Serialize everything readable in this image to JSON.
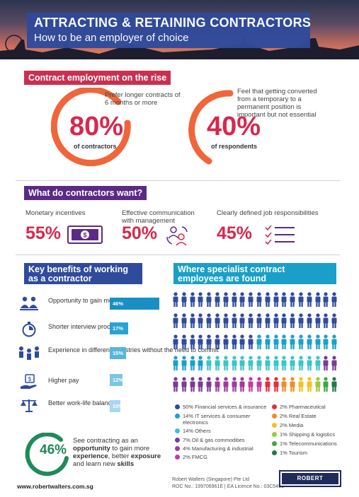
{
  "header": {
    "title": "ATTRACTING & RETAINING CONTRACTORS",
    "subtitle": "How to be an employer of choice"
  },
  "section1": {
    "title": "Contract employment on the rise",
    "stat1": {
      "desc": "Prefer longer contracts of 6 months or more",
      "value": "80%",
      "label": "of contractors"
    },
    "stat2": {
      "desc": "Feel that getting converted from a temporary to a permanent position is important but not essential",
      "value": "40%",
      "label": "of respondents"
    }
  },
  "section2": {
    "title": "What do contractors want?",
    "items": [
      {
        "label": "Monetary incentives",
        "value": "55%",
        "icon": "money-icon"
      },
      {
        "label": "Effective communication with management",
        "value": "50%",
        "icon": "communication-icon"
      },
      {
        "label": "Clearly defined job responsibilities",
        "value": "45%",
        "icon": "checklist-icon"
      }
    ]
  },
  "section3": {
    "title": "Key benefits of working as a contractor",
    "items": [
      {
        "label": "Opportunity to gain more exposure",
        "value": "46%",
        "pct": 46,
        "icon": "people-icon"
      },
      {
        "label": "Shorter interview process",
        "value": "17%",
        "pct": 17,
        "icon": "stopwatch-icon"
      },
      {
        "label": "Experience in different industries without the need to commit",
        "value": "15%",
        "pct": 15,
        "icon": "industries-icon"
      },
      {
        "label": "Higher pay",
        "value": "12%",
        "pct": 12,
        "icon": "pay-icon"
      },
      {
        "label": "Better work-life balance",
        "value": "10%",
        "pct": 10,
        "icon": "balance-icon"
      }
    ],
    "highlight": {
      "value": "46%",
      "text_pre": "See contracting as an ",
      "text_b1": "opportunity",
      "text_mid1": " to gain more ",
      "text_b2": "experience",
      "text_mid2": ", better ",
      "text_b3": "exposure",
      "text_mid3": " and learn new ",
      "text_b4": "skills"
    }
  },
  "section4": {
    "title": "Where specialist contract employees are found",
    "legend_left": [
      {
        "label": "50%  Financial services & insurance",
        "color": "#2f4b9c"
      },
      {
        "label": "14%  IT services & consumer electronics",
        "color": "#1aa0c8"
      },
      {
        "label": "14%  Others",
        "color": "#3cc4c8"
      },
      {
        "label": "7%  Oil & gas commodities",
        "color": "#7b3a96"
      },
      {
        "label": "4%  Manufacturing & industrial",
        "color": "#a03aa0"
      },
      {
        "label": "2%  FMCG",
        "color": "#c23aa6"
      }
    ],
    "legend_right": [
      {
        "label": "2%  Pharmaceutical",
        "color": "#e0303c"
      },
      {
        "label": "2%  Real Estate",
        "color": "#f08a2a"
      },
      {
        "label": "2%  Media",
        "color": "#f2c21e"
      },
      {
        "label": "1%  Shipping & logistics",
        "color": "#9cc83a"
      },
      {
        "label": "1%  Telecommunications",
        "color": "#3aa84a"
      },
      {
        "label": "1%  Tourism",
        "color": "#1f7a4a"
      }
    ]
  },
  "footer": {
    "url": "www.robertwalters.com.sg",
    "company": "Robert Walters (Singapore) Pte Ltd",
    "licence": "ROC No.: 199706961E | EA Licence No.: 03C5451",
    "logo": "ROBERT WALTERS"
  }
}
